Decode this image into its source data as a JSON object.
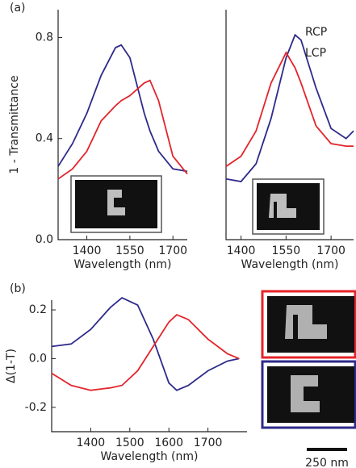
{
  "chart_data": [
    {
      "type": "line",
      "panel_label": "(a)",
      "ylabel": "1 - Transmittance",
      "xlabel": "Wavelength (nm)",
      "x": [
        1300,
        1350,
        1400,
        1450,
        1500,
        1520,
        1550,
        1600,
        1620,
        1650,
        1700,
        1750
      ],
      "series": [
        {
          "name": "RCP",
          "color": "#2e2a8a",
          "values": [
            0.29,
            0.38,
            0.5,
            0.65,
            0.76,
            0.77,
            0.72,
            0.5,
            0.43,
            0.35,
            0.28,
            0.27
          ]
        },
        {
          "name": "LCP",
          "color": "#e3242b",
          "values": [
            0.24,
            0.28,
            0.35,
            0.47,
            0.53,
            0.55,
            0.57,
            0.62,
            0.63,
            0.55,
            0.33,
            0.26
          ]
        }
      ],
      "xlim": [
        1300,
        1750
      ],
      "ylim": [
        0,
        0.91
      ],
      "xticks": [
        1400,
        1550,
        1700
      ],
      "yticks": [
        {
          "value": 0,
          "label": "0.0"
        },
        0.4,
        0.8
      ]
    },
    {
      "type": "line",
      "xlabel": "Wavelength (nm)",
      "x": [
        1350,
        1400,
        1450,
        1500,
        1550,
        1580,
        1600,
        1650,
        1700,
        1750,
        1775
      ],
      "series": [
        {
          "name": "RCP",
          "color": "#2e2a8a",
          "values": [
            0.24,
            0.23,
            0.3,
            0.48,
            0.72,
            0.81,
            0.79,
            0.6,
            0.44,
            0.4,
            0.43
          ]
        },
        {
          "name": "LCP",
          "color": "#e3242b",
          "values": [
            0.29,
            0.33,
            0.43,
            0.62,
            0.74,
            0.68,
            0.62,
            0.45,
            0.38,
            0.37,
            0.37
          ]
        }
      ],
      "xlim": [
        1350,
        1775
      ],
      "ylim": [
        0,
        0.91
      ],
      "xticks": [
        1400,
        1550,
        1700
      ],
      "legend": "upper right"
    },
    {
      "type": "line",
      "panel_label": "(b)",
      "ylabel": "Δ(1-T)",
      "xlabel": "Wavelength (nm)",
      "x": [
        1300,
        1350,
        1400,
        1450,
        1480,
        1520,
        1560,
        1600,
        1620,
        1650,
        1700,
        1750,
        1780
      ],
      "series": [
        {
          "color": "#2e2a8a",
          "values": [
            0.05,
            0.06,
            0.12,
            0.21,
            0.25,
            0.22,
            0.08,
            -0.1,
            -0.13,
            -0.11,
            -0.05,
            -0.01,
            0.0
          ]
        },
        {
          "color": "#e3242b",
          "values": [
            -0.06,
            -0.11,
            -0.13,
            -0.12,
            -0.11,
            -0.05,
            0.05,
            0.15,
            0.18,
            0.16,
            0.08,
            0.02,
            0.0
          ]
        }
      ],
      "xlim": [
        1300,
        1800
      ],
      "ylim": [
        -0.3,
        0.24
      ],
      "xticks": [
        1400,
        1500,
        1600,
        1700
      ],
      "yticks": [
        0.2,
        {
          "value": 0,
          "label": "0.0"
        },
        -0.2
      ]
    }
  ],
  "scale_bar": "250 nm"
}
